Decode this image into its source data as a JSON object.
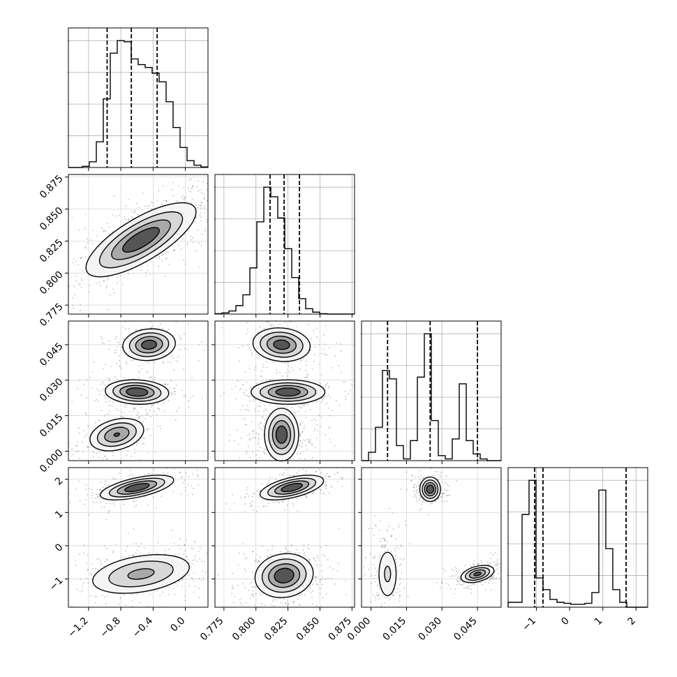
{
  "chart_data": {
    "type": "corner",
    "parameters": [
      {
        "xticks": [
          -1.2,
          -0.8,
          -0.4,
          0.0
        ],
        "range": [
          -1.45,
          0.28
        ]
      },
      {
        "xticks": [
          0.775,
          0.8,
          0.825,
          0.85,
          0.875
        ],
        "range": [
          0.768,
          0.877
        ]
      },
      {
        "xticks": [
          0.0,
          0.015,
          0.03,
          0.045
        ],
        "range": [
          -0.004,
          0.055
        ]
      },
      {
        "xticks": [
          -1,
          0,
          1,
          2
        ],
        "range": [
          -1.85,
          2.35
        ]
      }
    ],
    "tick_labels": {
      "x": [
        [
          "−1.2",
          "−0.8",
          "−0.4",
          "0.0"
        ],
        [
          "0.775",
          "0.800",
          "0.825",
          "0.850",
          "0.875"
        ],
        [
          "0.000",
          "0.015",
          "0.030",
          "0.045"
        ],
        [
          "−1",
          "0",
          "1",
          "2"
        ]
      ],
      "y": [
        null,
        [
          "0.775",
          "0.800",
          "0.825",
          "0.850",
          "0.875"
        ],
        [
          "0.000",
          "0.015",
          "0.030",
          "0.045"
        ],
        [
          "−1",
          "0",
          "1",
          "2"
        ]
      ]
    },
    "histograms": [
      {
        "edges_start": -1.45,
        "bin_width": 0.0865,
        "counts": [
          0,
          0,
          2,
          10,
          45,
          120,
          200,
          222,
          220,
          190,
          180,
          175,
          165,
          150,
          115,
          70,
          35,
          12,
          4,
          1
        ],
        "quantiles": [
          -0.97,
          -0.67,
          -0.35
        ]
      },
      {
        "edges_start": 0.768,
        "bin_width": 0.00545,
        "counts": [
          1,
          3,
          8,
          22,
          50,
          120,
          240,
          330,
          305,
          250,
          170,
          95,
          40,
          14,
          5,
          1,
          0,
          0,
          0,
          0
        ],
        "quantiles": [
          0.811,
          0.822,
          0.834
        ]
      },
      {
        "edges_start": -0.004,
        "bin_width": 0.00295,
        "counts": [
          0,
          25,
          100,
          270,
          245,
          45,
          5,
          60,
          250,
          380,
          120,
          15,
          5,
          65,
          230,
          60,
          20,
          5,
          0,
          0
        ],
        "quantiles": [
          0.007,
          0.025,
          0.045
        ]
      },
      {
        "edges_start": -1.85,
        "bin_width": 0.21,
        "counts": [
          5,
          5,
          95,
          130,
          30,
          18,
          8,
          5,
          4,
          3,
          3,
          4,
          15,
          120,
          60,
          18,
          5,
          0,
          0,
          0
        ],
        "quantiles": [
          -1.05,
          -0.8,
          1.7
        ]
      }
    ],
    "blobs": {
      "1_0": [
        {
          "cx": -0.55,
          "cy": 0.826,
          "sx": 0.33,
          "sy": 0.014,
          "rho": 0.75,
          "w": 1
        }
      ],
      "2_0": [
        {
          "cx": -0.45,
          "cy": 0.045,
          "sx": 0.16,
          "sy": 0.0033,
          "rho": 0.1,
          "w": 0.34
        },
        {
          "cx": -0.6,
          "cy": 0.025,
          "sx": 0.19,
          "sy": 0.0025,
          "rho": -0.1,
          "w": 0.33
        },
        {
          "cx": -0.85,
          "cy": 0.007,
          "sx": 0.17,
          "sy": 0.0035,
          "rho": 0.3,
          "w": 0.33
        }
      ],
      "2_1": [
        {
          "cx": 0.82,
          "cy": 0.045,
          "sx": 0.011,
          "sy": 0.0035,
          "rho": -0.1,
          "w": 0.34
        },
        {
          "cx": 0.825,
          "cy": 0.025,
          "sx": 0.014,
          "sy": 0.0025,
          "rho": 0.0,
          "w": 0.33
        },
        {
          "cx": 0.82,
          "cy": 0.007,
          "sx": 0.01,
          "sy": 0.0035,
          "rho": 0.0,
          "w": 0.33
        }
      ],
      "3_0": [
        {
          "cx": -0.6,
          "cy": 1.75,
          "sx": 0.22,
          "sy": 0.18,
          "rho": 0.6,
          "w": 0.38
        },
        {
          "cx": -0.55,
          "cy": -0.85,
          "sx": 0.33,
          "sy": 0.32,
          "rho": 0.35,
          "w": 0.62
        }
      ],
      "3_1": [
        {
          "cx": 0.828,
          "cy": 1.75,
          "sx": 0.012,
          "sy": 0.18,
          "rho": 0.55,
          "w": 0.38
        },
        {
          "cx": 0.822,
          "cy": -0.9,
          "sx": 0.011,
          "sy": 0.32,
          "rho": 0.1,
          "w": 0.62
        }
      ],
      "3_2": [
        {
          "cx": 0.025,
          "cy": 1.7,
          "sx": 0.0025,
          "sy": 0.15,
          "rho": 0.0,
          "w": 0.33
        },
        {
          "cx": 0.007,
          "cy": -0.85,
          "sx": 0.0025,
          "sy": 0.45,
          "rho": 0.0,
          "w": 0.33
        },
        {
          "cx": 0.045,
          "cy": -0.85,
          "sx": 0.0035,
          "sy": 0.13,
          "rho": 0.4,
          "w": 0.34
        }
      ]
    },
    "grid": true
  }
}
